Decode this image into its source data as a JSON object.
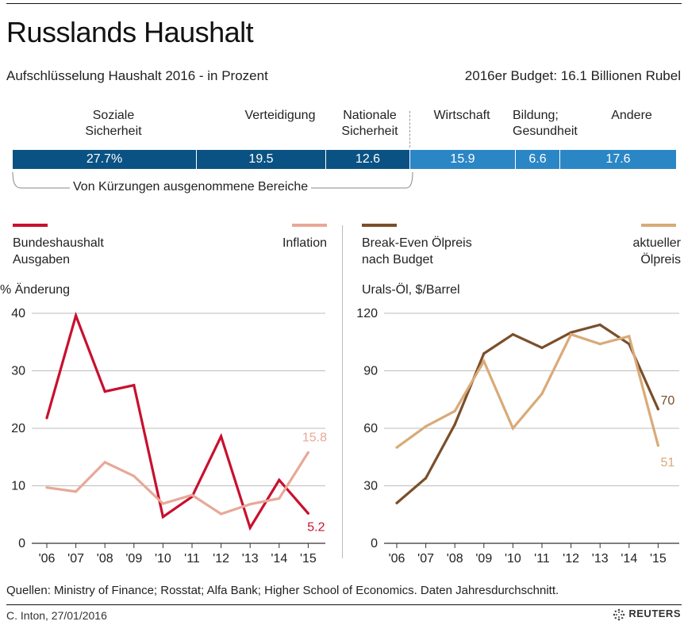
{
  "title": "Russlands Haushalt",
  "subtitle": "Aufschlüsselung Haushalt 2016 - in Prozent",
  "budget_note": "2016er Budget: 16.1 Billionen Rubel",
  "budget": {
    "segments": [
      {
        "label": "Soziale Sicherheit",
        "value": "27.7%",
        "protected": true
      },
      {
        "label": "Verteidigung",
        "value": "19.5",
        "protected": true
      },
      {
        "label": "Nationale Sicherheit",
        "value": "12.6",
        "protected": true
      },
      {
        "label": "Wirtschaft",
        "value": "15.9",
        "protected": false
      },
      {
        "label": "Bildung; Gesundheit",
        "value": "6.6",
        "protected": false
      },
      {
        "label": "Andere",
        "value": "17.6",
        "protected": false
      }
    ],
    "labels": {
      "s1a": "Soziale",
      "s1b": "Sicherheit",
      "s2": "Verteidigung",
      "s3a": "Nationale",
      "s3b": "Sicherheit",
      "s4": "Wirtschaft",
      "s5a": "Bildung;",
      "s5b": "Gesundheit",
      "s6": "Andere"
    },
    "values": {
      "v1": "27.7%",
      "v2": "19.5",
      "v3": "12.6",
      "v4": "15.9",
      "v5": "6.6",
      "v6": "17.6"
    },
    "exempt_label": "Von Kürzungen ausgenommene Bereiche"
  },
  "left_legend": {
    "series1_a": "Bundeshaushalt",
    "series1_b": "Ausgaben",
    "series2": "Inflation",
    "unit": "% Änderung"
  },
  "right_legend": {
    "series1_a": "Break-Even Ölpreis",
    "series1_b": "nach Budget",
    "series2_a": "aktueller",
    "series2_b": "Ölpreis",
    "unit": "Urals-Öl, $/Barrel"
  },
  "colors": {
    "spending": "#c8102e",
    "inflation": "#e8a898",
    "breakeven": "#7a4f2a",
    "oil": "#d9aa78",
    "bar_dark": "#0a5283",
    "bar_light": "#2b86c5"
  },
  "chart_data": [
    {
      "type": "line",
      "title": "",
      "ylabel": "% Änderung",
      "categories": [
        "'06",
        "'07",
        "'08",
        "'09",
        "'10",
        "'11",
        "'12",
        "'13",
        "'14",
        "'15"
      ],
      "ylim": [
        0,
        40
      ],
      "yticks": [
        0,
        10,
        20,
        30,
        40
      ],
      "series": [
        {
          "name": "Bundeshaushalt Ausgaben",
          "values": [
            21.8,
            39.6,
            26.4,
            27.5,
            4.6,
            8.1,
            18.6,
            2.7,
            11.0,
            5.2
          ],
          "end_label": "5.2"
        },
        {
          "name": "Inflation",
          "values": [
            9.7,
            9.0,
            14.1,
            11.7,
            6.9,
            8.4,
            5.1,
            6.8,
            7.8,
            15.8
          ],
          "end_label": "15.8"
        }
      ]
    },
    {
      "type": "line",
      "title": "",
      "ylabel": "Urals-Öl, $/Barrel",
      "categories": [
        "'06",
        "'07",
        "'08",
        "'09",
        "'10",
        "'11",
        "'12",
        "'13",
        "'14",
        "'15"
      ],
      "ylim": [
        0,
        120
      ],
      "yticks": [
        0,
        30,
        60,
        90,
        120
      ],
      "series": [
        {
          "name": "Break-Even Ölpreis nach Budget",
          "values": [
            21,
            34,
            62,
            99,
            109,
            102,
            110,
            114,
            104,
            70
          ],
          "end_label": "70"
        },
        {
          "name": "aktueller Ölpreis",
          "values": [
            50,
            61,
            69,
            95,
            60,
            78,
            109,
            104,
            108,
            51
          ],
          "end_label": "51"
        }
      ]
    }
  ],
  "footer": {
    "sources": "Quellen: Ministry of Finance; Rosstat; Alfa Bank; Higher School of Economics. Daten Jahresdurchschnitt.",
    "credit": "C. Inton, 27/01/2016",
    "logo": "REUTERS"
  }
}
